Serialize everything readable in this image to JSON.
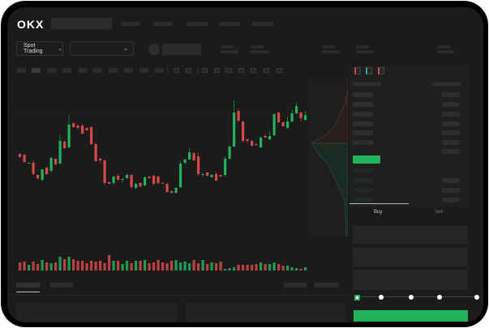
{
  "header": {
    "logo": "OKX",
    "market_selector": "Spot Trading"
  },
  "trade_panel": {
    "buy_tab": "Buy",
    "sell_tab": "Sell",
    "active_tab": "Buy",
    "slider_percent": 0
  },
  "colors": {
    "up": "#22b25b",
    "down": "#d84848",
    "background": "#1b1b1b"
  },
  "icons": [
    "okx-logo",
    "chevron-down-icon",
    "orderbook-both-icon",
    "orderbook-bids-icon",
    "orderbook-asks-icon"
  ],
  "chart_data": {
    "type": "candlestick",
    "candles": [
      [
        69,
        65,
        70,
        64
      ],
      [
        68,
        59,
        69,
        58
      ],
      [
        57,
        58,
        58,
        57
      ],
      [
        58,
        44,
        61,
        43
      ],
      [
        43,
        39,
        44,
        37
      ],
      [
        37,
        50,
        50,
        35
      ],
      [
        52,
        44,
        53,
        43
      ],
      [
        48,
        64,
        65,
        46
      ],
      [
        63,
        56,
        63,
        55
      ],
      [
        57,
        85,
        93,
        56
      ],
      [
        84,
        76,
        86,
        75
      ],
      [
        77,
        105,
        117,
        76
      ],
      [
        107,
        102,
        108,
        101
      ],
      [
        104,
        101,
        106,
        99
      ],
      [
        104,
        94,
        107,
        93
      ],
      [
        101,
        98,
        102,
        98
      ],
      [
        102,
        81,
        104,
        80
      ],
      [
        81,
        60,
        82,
        59
      ],
      [
        63,
        61,
        64,
        58
      ],
      [
        61,
        33,
        62,
        30
      ],
      [
        34,
        32,
        35,
        32
      ],
      [
        33,
        41,
        42,
        31
      ],
      [
        42,
        37,
        44,
        35
      ],
      [
        37,
        38,
        39,
        34
      ],
      [
        39,
        43,
        45,
        38
      ],
      [
        43,
        28,
        44,
        26
      ],
      [
        27,
        32,
        33,
        25
      ],
      [
        33,
        29,
        34,
        27
      ],
      [
        30,
        40,
        41,
        29
      ],
      [
        41,
        39,
        42,
        38
      ],
      [
        42,
        32,
        43,
        30
      ],
      [
        41,
        33,
        42,
        31
      ],
      [
        33,
        32,
        34,
        32
      ],
      [
        32,
        22,
        33,
        21
      ],
      [
        23,
        21,
        24,
        20
      ],
      [
        21,
        27,
        28,
        20
      ],
      [
        28,
        57,
        60,
        27
      ],
      [
        58,
        62,
        63,
        57
      ],
      [
        62,
        71,
        76,
        61
      ],
      [
        70,
        61,
        71,
        60
      ],
      [
        66,
        44,
        71,
        42
      ],
      [
        43,
        44,
        46,
        41
      ],
      [
        46,
        42,
        46,
        41
      ],
      [
        40,
        43,
        44,
        40
      ],
      [
        44,
        36,
        47,
        36
      ],
      [
        43,
        41,
        44,
        40
      ],
      [
        43,
        63,
        66,
        41
      ],
      [
        63,
        78,
        80,
        62
      ],
      [
        78,
        120,
        135,
        77
      ],
      [
        122,
        110,
        124,
        108
      ],
      [
        109,
        85,
        110,
        83
      ],
      [
        87,
        85,
        88,
        82
      ],
      [
        85,
        79,
        86,
        78
      ],
      [
        81,
        80,
        83,
        79
      ],
      [
        77,
        89,
        91,
        76
      ],
      [
        91,
        89,
        94,
        89
      ],
      [
        87,
        91,
        97,
        86
      ],
      [
        92,
        118,
        119,
        91
      ],
      [
        120,
        108,
        121,
        107
      ],
      [
        108,
        103,
        109,
        103
      ],
      [
        101,
        109,
        115,
        100
      ],
      [
        109,
        119,
        124,
        108
      ],
      [
        119,
        128,
        132,
        118
      ],
      [
        120,
        113,
        121,
        109
      ],
      [
        111,
        117,
        122,
        110
      ]
    ],
    "volume": [
      10,
      11,
      7,
      11,
      8,
      13,
      10,
      9,
      10,
      17,
      14,
      17,
      14,
      12,
      12,
      9,
      12,
      11,
      12,
      9,
      19,
      12,
      12,
      8,
      12,
      9,
      12,
      12,
      13,
      9,
      10,
      13,
      10,
      9,
      12,
      13,
      10,
      11,
      9,
      13,
      9,
      13,
      8,
      10,
      9,
      11,
      2,
      3,
      4,
      7,
      7,
      7,
      7,
      8,
      10,
      8,
      8,
      10,
      8,
      6,
      6,
      4,
      3,
      2,
      4
    ]
  }
}
